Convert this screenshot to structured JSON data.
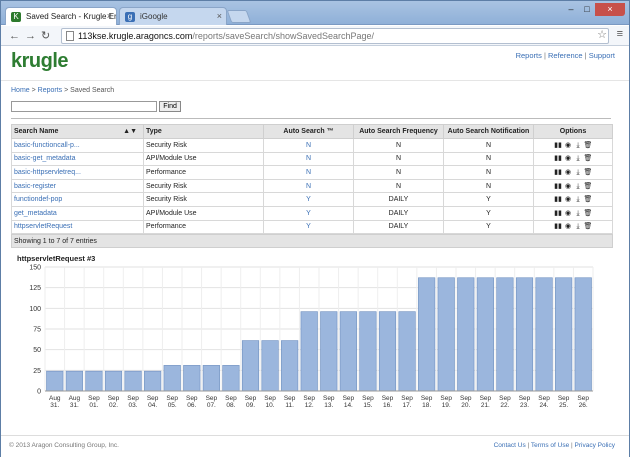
{
  "browser": {
    "tabs": [
      {
        "label": "Saved Search - Krugle Ent",
        "icon": "krugle-favicon"
      },
      {
        "label": "iGoogle",
        "icon": "igoogle-favicon"
      }
    ],
    "url_host": "113kse.krugle.aragoncs.com",
    "url_path": "/reports/saveSearch/showSavedSearchPage/"
  },
  "header": {
    "logo": "krugle",
    "links": [
      "Reports",
      "Reference",
      "Support"
    ]
  },
  "breadcrumb": {
    "items": [
      "Home",
      "Reports"
    ],
    "current": "Saved Search"
  },
  "search": {
    "input_value": "",
    "button": "Find"
  },
  "table": {
    "columns": [
      "Search Name",
      "Type",
      "Auto Search ™",
      "Auto Search Frequency",
      "Auto Search Notification",
      "Options"
    ],
    "rows": [
      {
        "name": "basic-functioncall-p...",
        "type": "Security Risk",
        "auto": "N",
        "freq": "N",
        "notif": "N"
      },
      {
        "name": "basic-get_metadata",
        "type": "API/Module Use",
        "auto": "N",
        "freq": "N",
        "notif": "N"
      },
      {
        "name": "basic-httpservletreq...",
        "type": "Performance",
        "auto": "N",
        "freq": "N",
        "notif": "N"
      },
      {
        "name": "basic-register",
        "type": "Security Risk",
        "auto": "N",
        "freq": "N",
        "notif": "N"
      },
      {
        "name": "functiondef-pop",
        "type": "Security Risk",
        "auto": "Y",
        "freq": "DAILY",
        "notif": "Y"
      },
      {
        "name": "get_metadata",
        "type": "API/Module Use",
        "auto": "Y",
        "freq": "DAILY",
        "notif": "Y"
      },
      {
        "name": "httpservletRequest",
        "type": "Performance",
        "auto": "Y",
        "freq": "DAILY",
        "notif": "Y"
      }
    ],
    "footer": "Showing 1 to 7 of 7 entries"
  },
  "chart_data": {
    "type": "bar",
    "title": "httpservletRequest #3",
    "xlabel": "",
    "ylabel": "",
    "ylim": [
      0,
      150
    ],
    "yticks": [
      0,
      25,
      50,
      75,
      100,
      125,
      150
    ],
    "categories": [
      [
        "Aug",
        "31."
      ],
      [
        "Aug",
        "31."
      ],
      [
        "Sep",
        "01."
      ],
      [
        "Sep",
        "02."
      ],
      [
        "Sep",
        "03."
      ],
      [
        "Sep",
        "04."
      ],
      [
        "Sep",
        "05."
      ],
      [
        "Sep",
        "06."
      ],
      [
        "Sep",
        "07."
      ],
      [
        "Sep",
        "08."
      ],
      [
        "Sep",
        "09."
      ],
      [
        "Sep",
        "10."
      ],
      [
        "Sep",
        "11."
      ],
      [
        "Sep",
        "12."
      ],
      [
        "Sep",
        "13."
      ],
      [
        "Sep",
        "14."
      ],
      [
        "Sep",
        "15."
      ],
      [
        "Sep",
        "16."
      ],
      [
        "Sep",
        "17."
      ],
      [
        "Sep",
        "18."
      ],
      [
        "Sep",
        "19."
      ],
      [
        "Sep",
        "20."
      ],
      [
        "Sep",
        "21."
      ],
      [
        "Sep",
        "22."
      ],
      [
        "Sep",
        "23."
      ],
      [
        "Sep",
        "24."
      ],
      [
        "Sep",
        "25."
      ],
      [
        "Sep",
        "26."
      ]
    ],
    "values": [
      24,
      24,
      24,
      24,
      24,
      24,
      31,
      31,
      31,
      31,
      61,
      61,
      61,
      96,
      96,
      96,
      96,
      96,
      96,
      137,
      137,
      137,
      137,
      137,
      137,
      137,
      137,
      137
    ],
    "grid": true,
    "colors": {
      "bar": "#9bb6dd",
      "bar_stroke": "#6e8fbf"
    }
  },
  "footer": {
    "copyright": "© 2013 Aragon Consulting Group, Inc.",
    "links": [
      "Contact Us",
      "Terms of Use",
      "Privacy Policy"
    ]
  }
}
